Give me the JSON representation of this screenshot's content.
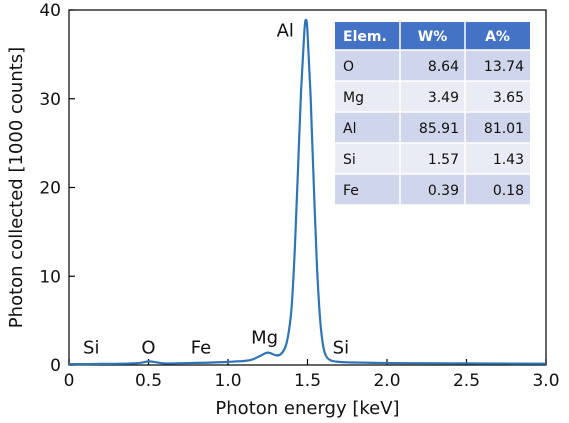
{
  "chart_data": {
    "type": "line",
    "xlabel": "Photon energy [keV]",
    "ylabel": "Photon collected [1000 counts]",
    "xlim": [
      0,
      3.0
    ],
    "ylim": [
      0,
      40
    ],
    "xticks": [
      "0",
      "0.5",
      "1.0",
      "1.5",
      "2.0",
      "2.5",
      "3.0"
    ],
    "yticks": [
      "0",
      "10",
      "20",
      "30",
      "40"
    ],
    "grid": false,
    "colors": {
      "line": "#2e75b6",
      "table_header": "#4472c4",
      "table_row_dark": "#cfd5ea",
      "table_row_light": "#e9ebf5"
    },
    "series": [
      {
        "x": [
          0,
          0.1,
          0.2,
          0.3,
          0.4,
          0.45,
          0.5,
          0.55,
          0.6,
          0.7,
          0.8,
          0.9,
          1.0,
          1.05,
          1.1,
          1.15,
          1.2,
          1.25,
          1.3,
          1.33,
          1.36,
          1.38,
          1.4,
          1.42,
          1.44,
          1.46,
          1.48,
          1.49,
          1.5,
          1.52,
          1.54,
          1.56,
          1.58,
          1.6,
          1.62,
          1.65,
          1.7,
          1.75,
          1.8,
          2.0,
          2.2,
          2.5,
          2.8,
          3.0
        ],
        "y": [
          0.1,
          0.1,
          0.12,
          0.14,
          0.18,
          0.25,
          0.4,
          0.3,
          0.18,
          0.2,
          0.24,
          0.28,
          0.35,
          0.4,
          0.45,
          0.6,
          1.0,
          1.4,
          1.1,
          1.2,
          2.0,
          3.5,
          6.5,
          13.0,
          22.0,
          31.0,
          37.5,
          38.9,
          37.5,
          30.0,
          20.0,
          11.0,
          5.0,
          2.0,
          0.9,
          0.5,
          0.35,
          0.3,
          0.28,
          0.22,
          0.2,
          0.18,
          0.16,
          0.15
        ]
      }
    ],
    "annotations": [
      {
        "text": "Si",
        "x": 0.14,
        "y": 1.3
      },
      {
        "text": "O",
        "x": 0.5,
        "y": 1.3
      },
      {
        "text": "Fe",
        "x": 0.83,
        "y": 1.3
      },
      {
        "text": "Mg",
        "x": 1.23,
        "y": 2.4
      },
      {
        "text": "Al",
        "x": 1.36,
        "y": 37.0
      },
      {
        "text": "Si",
        "x": 1.71,
        "y": 1.3
      }
    ],
    "table": {
      "headers": [
        "Elem.",
        "W%",
        "A%"
      ],
      "rows": [
        [
          "O",
          "8.64",
          "13.74"
        ],
        [
          "Mg",
          "3.49",
          "3.65"
        ],
        [
          "Al",
          "85.91",
          "81.01"
        ],
        [
          "Si",
          "1.57",
          "1.43"
        ],
        [
          "Fe",
          "0.39",
          "0.18"
        ]
      ]
    }
  }
}
